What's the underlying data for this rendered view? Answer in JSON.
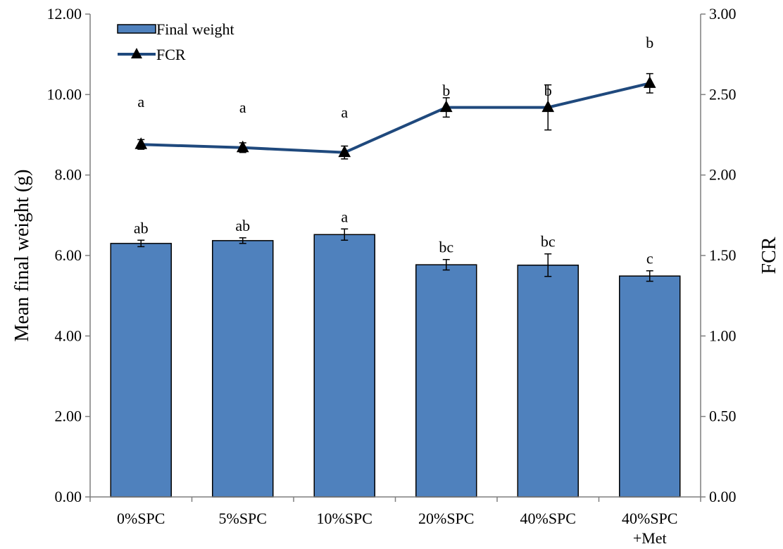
{
  "chart_data": {
    "type": "bar",
    "categories": [
      [
        "0%SPC"
      ],
      [
        "5%SPC"
      ],
      [
        "10%SPC"
      ],
      [
        "20%SPC"
      ],
      [
        "40%SPC"
      ],
      [
        "40%SPC",
        "+Met"
      ]
    ],
    "ylabel": "Mean final weight (g)",
    "y2label": "FCR",
    "ylim": [
      0,
      12
    ],
    "y2lim": [
      0,
      3
    ],
    "yticks": [
      "0.00",
      "2.00",
      "4.00",
      "6.00",
      "8.00",
      "10.00",
      "12.00"
    ],
    "y2ticks": [
      "0.00",
      "0.50",
      "1.00",
      "1.50",
      "2.00",
      "2.50",
      "3.00"
    ],
    "grid": false,
    "legend_position": "top-left",
    "series": [
      {
        "name": "Final weight",
        "type": "bar",
        "axis": "left",
        "color": "#4F81BD",
        "values": [
          6.3,
          6.37,
          6.52,
          5.77,
          5.76,
          5.49
        ],
        "errors": [
          0.08,
          0.07,
          0.14,
          0.13,
          0.28,
          0.13
        ],
        "labels": [
          "ab",
          "ab",
          "a",
          "bc",
          "bc",
          "c"
        ]
      },
      {
        "name": "FCR",
        "type": "line",
        "axis": "right",
        "color": "#1F497D",
        "marker": "triangle",
        "values": [
          2.19,
          2.17,
          2.14,
          2.42,
          2.42,
          2.57
        ],
        "errors": [
          0.03,
          0.03,
          0.04,
          0.06,
          0.14,
          0.06
        ],
        "labels": [
          "a",
          "a",
          "a",
          "b",
          "b",
          "b"
        ]
      }
    ]
  }
}
